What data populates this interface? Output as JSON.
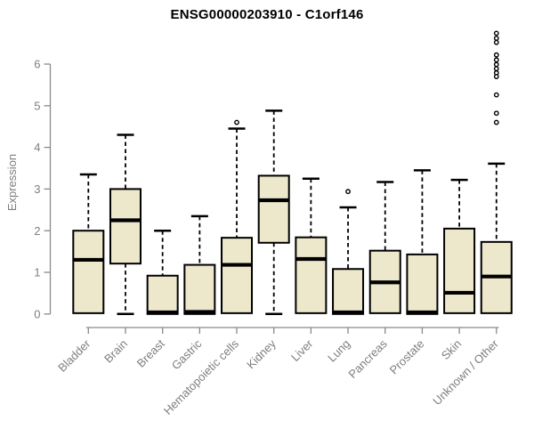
{
  "colors": {
    "background": "#FFFFFF",
    "box_fill": "#EDE7CB",
    "box_stroke": "#000000",
    "median": "#000000",
    "whisker": "#000000",
    "outlier": "#000000",
    "axis": "#8A8A8A",
    "tick_text": "#7E7E7E",
    "title_text": "#000000"
  },
  "chart_data": {
    "type": "boxplot",
    "title": "ENSG00000203910 - C1orf146",
    "xlabel": "",
    "ylabel": "Expression",
    "ylim": [
      0,
      6.8
    ],
    "yticks": [
      0,
      1,
      2,
      3,
      4,
      5,
      6
    ],
    "grid": false,
    "legend": null,
    "categories": [
      "Bladder",
      "Brain",
      "Breast",
      "Gastric",
      "Hematopoietic cells",
      "Kidney",
      "Liver",
      "Lung",
      "Pancreas",
      "Prostate",
      "Skin",
      "Unknown / Other"
    ],
    "series": [
      {
        "name": "Bladder",
        "whisker_low": 0,
        "q1": 0.02,
        "median": 1.3,
        "q3": 2.0,
        "whisker_high": 3.35,
        "outliers": []
      },
      {
        "name": "Brain",
        "whisker_low": 0,
        "q1": 1.21,
        "median": 2.25,
        "q3": 3.0,
        "whisker_high": 4.3,
        "outliers": []
      },
      {
        "name": "Breast",
        "whisker_low": 0,
        "q1": 0.0,
        "median": 0.04,
        "q3": 0.92,
        "whisker_high": 2.0,
        "outliers": []
      },
      {
        "name": "Gastric",
        "whisker_low": 0,
        "q1": 0.0,
        "median": 0.05,
        "q3": 1.18,
        "whisker_high": 2.35,
        "outliers": []
      },
      {
        "name": "Hematopoietic cells",
        "whisker_low": 0,
        "q1": 0.02,
        "median": 1.18,
        "q3": 1.83,
        "whisker_high": 4.45,
        "outliers": [
          4.6
        ]
      },
      {
        "name": "Kidney",
        "whisker_low": 0,
        "q1": 1.71,
        "median": 2.73,
        "q3": 3.32,
        "whisker_high": 4.88,
        "outliers": []
      },
      {
        "name": "Liver",
        "whisker_low": 0,
        "q1": 0.02,
        "median": 1.32,
        "q3": 1.84,
        "whisker_high": 3.25,
        "outliers": []
      },
      {
        "name": "Lung",
        "whisker_low": 0,
        "q1": 0.0,
        "median": 0.04,
        "q3": 1.08,
        "whisker_high": 2.56,
        "outliers": [
          2.94
        ]
      },
      {
        "name": "Pancreas",
        "whisker_low": 0,
        "q1": 0.02,
        "median": 0.76,
        "q3": 1.52,
        "whisker_high": 3.17,
        "outliers": []
      },
      {
        "name": "Prostate",
        "whisker_low": 0,
        "q1": 0.0,
        "median": 0.04,
        "q3": 1.43,
        "whisker_high": 3.45,
        "outliers": []
      },
      {
        "name": "Skin",
        "whisker_low": 0,
        "q1": 0.02,
        "median": 0.51,
        "q3": 2.05,
        "whisker_high": 3.22,
        "outliers": []
      },
      {
        "name": "Unknown / Other",
        "whisker_low": 0,
        "q1": 0.02,
        "median": 0.9,
        "q3": 1.73,
        "whisker_high": 3.61,
        "outliers": [
          6.74,
          6.62,
          6.52,
          6.22,
          6.1,
          5.99,
          5.89,
          5.79,
          5.7,
          5.26,
          4.82,
          4.6
        ]
      }
    ]
  }
}
